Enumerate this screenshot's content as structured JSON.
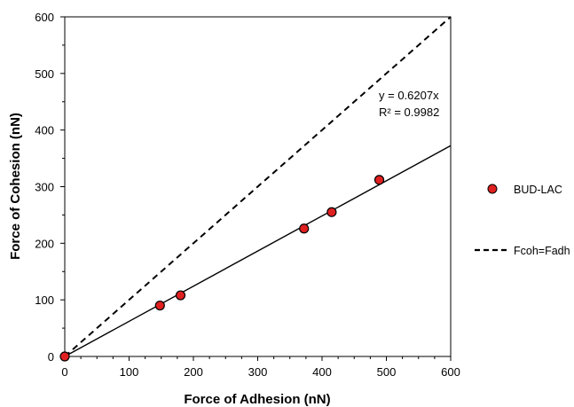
{
  "chart_data": {
    "type": "scatter",
    "title": "",
    "xlabel": "Force of Adhesion (nN)",
    "ylabel": "Force of Cohesion (nN)",
    "xlim": [
      0,
      600
    ],
    "ylim": [
      0,
      600
    ],
    "xticks": [
      0,
      100,
      200,
      300,
      400,
      500,
      600
    ],
    "yticks": [
      0,
      100,
      200,
      300,
      400,
      500,
      600
    ],
    "grid": false,
    "legend_position": "right",
    "series": [
      {
        "name": "BUD-LAC",
        "kind": "scatter",
        "color": "#e02020",
        "edge_color": "#000000",
        "x": [
          0,
          148,
          180,
          372,
          415,
          489
        ],
        "y": [
          0,
          90,
          108,
          226,
          255,
          312
        ]
      },
      {
        "name": "Fcoh=Fadh",
        "kind": "dashed-line",
        "color": "#000000",
        "x": [
          0,
          600
        ],
        "y": [
          0,
          600
        ]
      }
    ],
    "trendline": {
      "series": "BUD-LAC",
      "slope": 0.6207,
      "x": [
        0,
        600
      ],
      "color": "#000000",
      "equation_label": "y = 0.6207x",
      "r2_label": "R² = 0.9982"
    }
  }
}
